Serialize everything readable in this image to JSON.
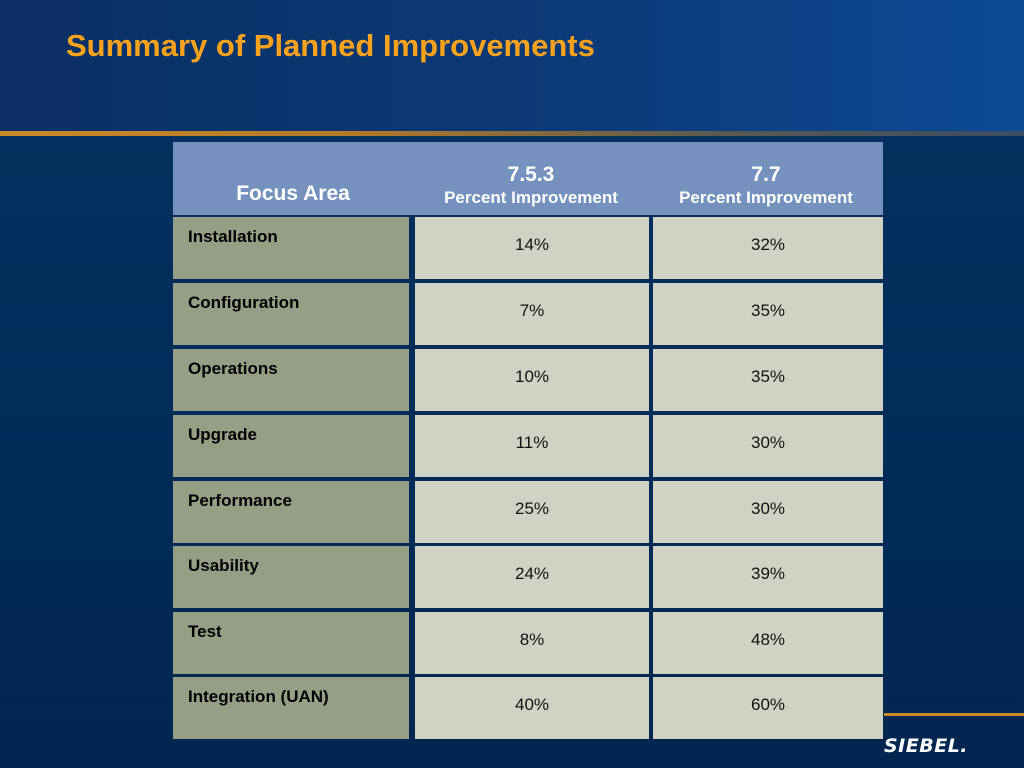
{
  "title": "Summary of Planned Improvements",
  "table": {
    "headers": {
      "focus_area": "Focus Area",
      "col1_version": "7.5.3",
      "col1_sub": "Percent Improvement",
      "col2_version": "7.7",
      "col2_sub": "Percent Improvement"
    },
    "rows": [
      {
        "area": "Installation",
        "v1": "14%",
        "v2": "32%"
      },
      {
        "area": "Configuration",
        "v1": "7%",
        "v2": "35%"
      },
      {
        "area": "Operations",
        "v1": "10%",
        "v2": "35%"
      },
      {
        "area": "Upgrade",
        "v1": "11%",
        "v2": "30%"
      },
      {
        "area": "Performance",
        "v1": "25%",
        "v2": "30%"
      },
      {
        "area": "Usability",
        "v1": "24%",
        "v2": "39%"
      },
      {
        "area": "Test",
        "v1": "8%",
        "v2": "48%"
      },
      {
        "area": "Integration (UAN)",
        "v1": "40%",
        "v2": "60%"
      }
    ]
  },
  "logo": {
    "text": "SIEBEL."
  },
  "colors": {
    "title": "#f6a21c",
    "header_bg": "#7591bd",
    "area_cell": "#959f86",
    "value_cell": "#d0d3c4",
    "background": "#002a58"
  }
}
